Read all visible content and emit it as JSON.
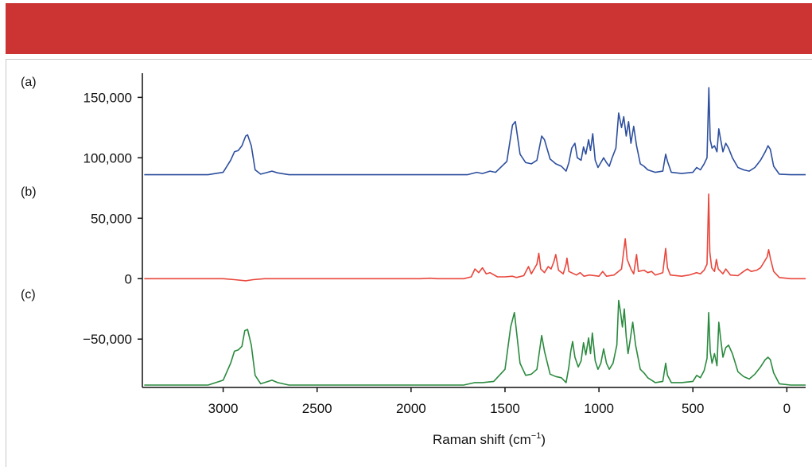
{
  "colors": {
    "header": "#cc3333",
    "series_a": "#2d4f9e",
    "series_b": "#e8473c",
    "series_c": "#2a8a3e"
  },
  "chart_data": {
    "type": "line",
    "title": "",
    "xlabel": "Raman shift (cm",
    "xlabel_superscript": "−1",
    "xlabel_close": ")",
    "ylabel": "",
    "xlim": [
      3430,
      -100
    ],
    "ylim": [
      -90000,
      170000
    ],
    "x_axis_reversed": true,
    "x_ticks": [
      3000,
      2500,
      2000,
      1500,
      1000,
      500,
      0
    ],
    "x_tick_labels": [
      "3000",
      "2500",
      "2000",
      "1500",
      "1000",
      "500",
      "0"
    ],
    "y_ticks": [
      150000,
      100000,
      50000,
      0,
      -50000
    ],
    "y_tick_labels": [
      "150,000",
      "100,000",
      "50,000",
      "0",
      "−50,000"
    ],
    "grid": false,
    "panel_labels": [
      "(a)",
      "(b)",
      "(c)"
    ],
    "series": [
      {
        "label": "(a)",
        "color": "#2d4f9e",
        "baseline": 86000,
        "points": [
          [
            3420,
            86000
          ],
          [
            3080,
            86000
          ],
          [
            3000,
            88000
          ],
          [
            2960,
            98000
          ],
          [
            2940,
            105000
          ],
          [
            2920,
            106000
          ],
          [
            2900,
            110000
          ],
          [
            2880,
            118000
          ],
          [
            2870,
            119000
          ],
          [
            2850,
            110000
          ],
          [
            2830,
            90000
          ],
          [
            2800,
            86500
          ],
          [
            2740,
            89000
          ],
          [
            2710,
            87500
          ],
          [
            2650,
            86000
          ],
          [
            1700,
            86000
          ],
          [
            1650,
            88000
          ],
          [
            1620,
            87000
          ],
          [
            1580,
            89000
          ],
          [
            1550,
            88000
          ],
          [
            1490,
            97000
          ],
          [
            1460,
            127000
          ],
          [
            1445,
            130000
          ],
          [
            1420,
            103000
          ],
          [
            1390,
            96000
          ],
          [
            1360,
            95000
          ],
          [
            1330,
            98000
          ],
          [
            1305,
            118000
          ],
          [
            1290,
            115000
          ],
          [
            1260,
            99000
          ],
          [
            1230,
            95000
          ],
          [
            1200,
            93000
          ],
          [
            1175,
            89000
          ],
          [
            1160,
            96000
          ],
          [
            1145,
            108000
          ],
          [
            1128,
            112000
          ],
          [
            1115,
            100000
          ],
          [
            1095,
            98000
          ],
          [
            1082,
            109000
          ],
          [
            1070,
            103000
          ],
          [
            1055,
            115000
          ],
          [
            1045,
            106000
          ],
          [
            1033,
            120000
          ],
          [
            1020,
            98000
          ],
          [
            1005,
            92000
          ],
          [
            990,
            96000
          ],
          [
            975,
            100000
          ],
          [
            960,
            96000
          ],
          [
            945,
            93000
          ],
          [
            930,
            100000
          ],
          [
            910,
            108000
          ],
          [
            895,
            137000
          ],
          [
            880,
            125000
          ],
          [
            868,
            134000
          ],
          [
            855,
            118000
          ],
          [
            842,
            130000
          ],
          [
            830,
            112000
          ],
          [
            815,
            126000
          ],
          [
            800,
            110000
          ],
          [
            780,
            95000
          ],
          [
            760,
            93000
          ],
          [
            740,
            90000
          ],
          [
            700,
            88000
          ],
          [
            660,
            89000
          ],
          [
            645,
            103000
          ],
          [
            635,
            97000
          ],
          [
            615,
            88000
          ],
          [
            560,
            87000
          ],
          [
            500,
            88000
          ],
          [
            480,
            92000
          ],
          [
            460,
            90000
          ],
          [
            440,
            95000
          ],
          [
            425,
            100000
          ],
          [
            415,
            158000
          ],
          [
            408,
            115000
          ],
          [
            398,
            108000
          ],
          [
            385,
            110000
          ],
          [
            372,
            105000
          ],
          [
            362,
            124000
          ],
          [
            352,
            115000
          ],
          [
            340,
            105000
          ],
          [
            325,
            112000
          ],
          [
            310,
            108000
          ],
          [
            290,
            100000
          ],
          [
            260,
            92000
          ],
          [
            230,
            90000
          ],
          [
            200,
            89000
          ],
          [
            170,
            92000
          ],
          [
            140,
            98000
          ],
          [
            115,
            105000
          ],
          [
            100,
            110000
          ],
          [
            88,
            107000
          ],
          [
            70,
            93000
          ],
          [
            40,
            86500
          ],
          [
            -20,
            86000
          ],
          [
            -100,
            86000
          ]
        ]
      },
      {
        "label": "(b)",
        "color": "#e8473c",
        "baseline": 0,
        "points": [
          [
            3420,
            0
          ],
          [
            3000,
            0
          ],
          [
            2940,
            -800
          ],
          [
            2880,
            -1700
          ],
          [
            2840,
            -800
          ],
          [
            2780,
            0
          ],
          [
            1950,
            0
          ],
          [
            1900,
            400
          ],
          [
            1860,
            0
          ],
          [
            1720,
            0
          ],
          [
            1680,
            1500
          ],
          [
            1660,
            8000
          ],
          [
            1640,
            5000
          ],
          [
            1620,
            9000
          ],
          [
            1600,
            4000
          ],
          [
            1580,
            5000
          ],
          [
            1540,
            1500
          ],
          [
            1500,
            1500
          ],
          [
            1460,
            2000
          ],
          [
            1440,
            1000
          ],
          [
            1400,
            2500
          ],
          [
            1375,
            10000
          ],
          [
            1360,
            4000
          ],
          [
            1330,
            12000
          ],
          [
            1320,
            21000
          ],
          [
            1310,
            8000
          ],
          [
            1290,
            5000
          ],
          [
            1270,
            10000
          ],
          [
            1255,
            8000
          ],
          [
            1240,
            14000
          ],
          [
            1230,
            20000
          ],
          [
            1215,
            7000
          ],
          [
            1190,
            4000
          ],
          [
            1175,
            12000
          ],
          [
            1170,
            17000
          ],
          [
            1160,
            6000
          ],
          [
            1120,
            3000
          ],
          [
            1100,
            5000
          ],
          [
            1080,
            2000
          ],
          [
            1050,
            3000
          ],
          [
            1000,
            2000
          ],
          [
            980,
            6000
          ],
          [
            960,
            2000
          ],
          [
            920,
            3000
          ],
          [
            880,
            8000
          ],
          [
            860,
            33000
          ],
          [
            850,
            16000
          ],
          [
            830,
            8000
          ],
          [
            815,
            4000
          ],
          [
            800,
            20000
          ],
          [
            790,
            6000
          ],
          [
            760,
            7000
          ],
          [
            740,
            5000
          ],
          [
            720,
            6000
          ],
          [
            700,
            3000
          ],
          [
            660,
            5000
          ],
          [
            645,
            25000
          ],
          [
            635,
            9000
          ],
          [
            620,
            3000
          ],
          [
            560,
            2000
          ],
          [
            520,
            3000
          ],
          [
            500,
            4000
          ],
          [
            480,
            5000
          ],
          [
            460,
            4000
          ],
          [
            440,
            7000
          ],
          [
            425,
            12000
          ],
          [
            416,
            70000
          ],
          [
            410,
            22000
          ],
          [
            400,
            9000
          ],
          [
            385,
            6000
          ],
          [
            375,
            16000
          ],
          [
            365,
            8000
          ],
          [
            340,
            4000
          ],
          [
            325,
            8000
          ],
          [
            300,
            3000
          ],
          [
            260,
            2500
          ],
          [
            230,
            6000
          ],
          [
            210,
            8000
          ],
          [
            190,
            6000
          ],
          [
            160,
            7000
          ],
          [
            140,
            9000
          ],
          [
            120,
            14000
          ],
          [
            105,
            18000
          ],
          [
            97,
            24000
          ],
          [
            88,
            17000
          ],
          [
            70,
            6000
          ],
          [
            40,
            1000
          ],
          [
            -20,
            0
          ],
          [
            -100,
            0
          ]
        ]
      },
      {
        "label": "(c)",
        "color": "#2a8a3e",
        "baseline": -88000,
        "points": [
          [
            3420,
            -88000
          ],
          [
            3080,
            -88000
          ],
          [
            3000,
            -84000
          ],
          [
            2960,
            -70000
          ],
          [
            2940,
            -60000
          ],
          [
            2920,
            -59000
          ],
          [
            2900,
            -56000
          ],
          [
            2885,
            -43000
          ],
          [
            2870,
            -42000
          ],
          [
            2850,
            -55000
          ],
          [
            2830,
            -80000
          ],
          [
            2800,
            -87000
          ],
          [
            2740,
            -84000
          ],
          [
            2710,
            -86000
          ],
          [
            2650,
            -88000
          ],
          [
            1720,
            -88000
          ],
          [
            1660,
            -86000
          ],
          [
            1620,
            -86000
          ],
          [
            1560,
            -85000
          ],
          [
            1500,
            -75000
          ],
          [
            1470,
            -40000
          ],
          [
            1450,
            -28000
          ],
          [
            1420,
            -70000
          ],
          [
            1390,
            -80000
          ],
          [
            1360,
            -79000
          ],
          [
            1330,
            -75000
          ],
          [
            1305,
            -47000
          ],
          [
            1290,
            -60000
          ],
          [
            1260,
            -79000
          ],
          [
            1230,
            -81000
          ],
          [
            1200,
            -82000
          ],
          [
            1175,
            -86000
          ],
          [
            1160,
            -73000
          ],
          [
            1150,
            -60000
          ],
          [
            1140,
            -52000
          ],
          [
            1128,
            -65000
          ],
          [
            1110,
            -73000
          ],
          [
            1095,
            -68000
          ],
          [
            1082,
            -53000
          ],
          [
            1070,
            -63000
          ],
          [
            1055,
            -49000
          ],
          [
            1045,
            -62000
          ],
          [
            1035,
            -45000
          ],
          [
            1020,
            -68000
          ],
          [
            1005,
            -75000
          ],
          [
            990,
            -70000
          ],
          [
            975,
            -58000
          ],
          [
            960,
            -70000
          ],
          [
            945,
            -75000
          ],
          [
            925,
            -70000
          ],
          [
            905,
            -55000
          ],
          [
            895,
            -18000
          ],
          [
            885,
            -28000
          ],
          [
            875,
            -40000
          ],
          [
            865,
            -25000
          ],
          [
            855,
            -48000
          ],
          [
            845,
            -62000
          ],
          [
            835,
            -52000
          ],
          [
            820,
            -36000
          ],
          [
            805,
            -55000
          ],
          [
            780,
            -75000
          ],
          [
            760,
            -78000
          ],
          [
            740,
            -82000
          ],
          [
            700,
            -86000
          ],
          [
            660,
            -85000
          ],
          [
            645,
            -70000
          ],
          [
            635,
            -80000
          ],
          [
            615,
            -86000
          ],
          [
            560,
            -86000
          ],
          [
            500,
            -85000
          ],
          [
            480,
            -80000
          ],
          [
            460,
            -82000
          ],
          [
            440,
            -76000
          ],
          [
            425,
            -66000
          ],
          [
            416,
            -28000
          ],
          [
            408,
            -60000
          ],
          [
            398,
            -70000
          ],
          [
            385,
            -62000
          ],
          [
            372,
            -72000
          ],
          [
            362,
            -36000
          ],
          [
            352,
            -50000
          ],
          [
            340,
            -65000
          ],
          [
            325,
            -57000
          ],
          [
            310,
            -55000
          ],
          [
            290,
            -62000
          ],
          [
            260,
            -77000
          ],
          [
            230,
            -81000
          ],
          [
            200,
            -83000
          ],
          [
            170,
            -79000
          ],
          [
            140,
            -73000
          ],
          [
            115,
            -67000
          ],
          [
            100,
            -65000
          ],
          [
            88,
            -67000
          ],
          [
            70,
            -78000
          ],
          [
            40,
            -87000
          ],
          [
            -20,
            -88000
          ],
          [
            -100,
            -88000
          ]
        ]
      }
    ]
  }
}
